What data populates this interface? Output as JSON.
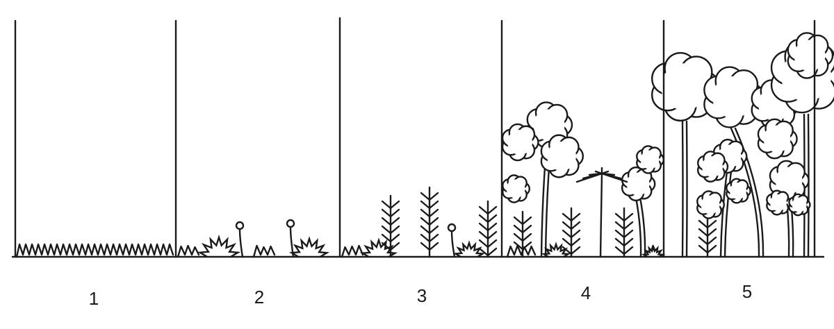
{
  "labels": [
    "1",
    "2",
    "3",
    "4",
    "5"
  ]
}
